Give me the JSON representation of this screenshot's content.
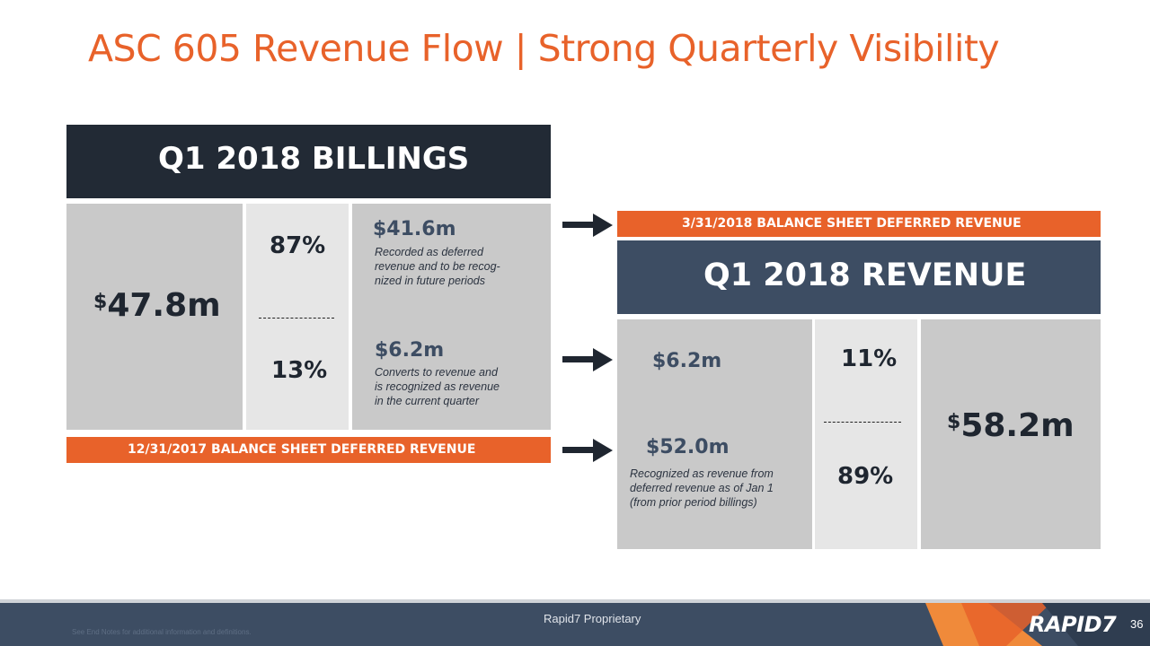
{
  "title": "ASC 605 Revenue Flow  |  Strong Quarterly Visibility",
  "billings": {
    "header": "Q1 2018 BILLINGS",
    "total_symbol": "$",
    "total": "47.8m",
    "top_pct": "87%",
    "top_amount": "$41.6m",
    "top_note": [
      "Recorded as deferred",
      "revenue and to be recog-",
      "nized in future periods"
    ],
    "bottom_pct": "13%",
    "bottom_amount": "$6.2m",
    "bottom_note": [
      "Converts to revenue and",
      "is recognized as revenue",
      "in the current quarter"
    ],
    "deferred_bar": "12/31/2017 BALANCE SHEET DEFERRED REVENUE"
  },
  "revenue": {
    "deferred_bar": "3/31/2018 BALANCE SHEET DEFERRED REVENUE",
    "header": "Q1 2018 REVENUE",
    "top_amount": "$6.2m",
    "top_pct": "11%",
    "bottom_amount": "$52.0m",
    "bottom_note": [
      "Recognized as revenue from",
      "deferred revenue as of  Jan 1",
      "(from prior period billings)"
    ],
    "bottom_pct": "89%",
    "total_symbol": "$",
    "total": "58.2m"
  },
  "footer": {
    "proprietary": "Rapid7 Proprietary",
    "endnote": "See End Notes for additional information and definitions.",
    "logo": "RAPID7",
    "page": "36"
  },
  "colors": {
    "accent": "#e8622a",
    "dark_navy": "#222a35",
    "slate": "#3d4d63"
  }
}
